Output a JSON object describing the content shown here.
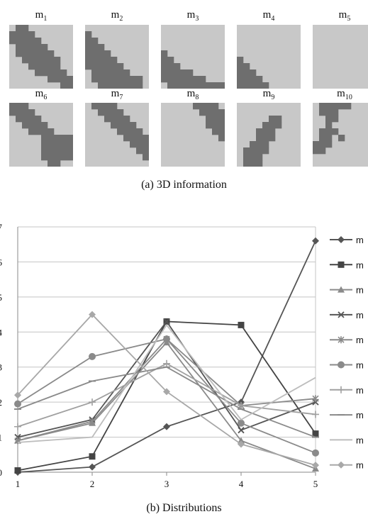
{
  "caption_a": "(a) 3D information",
  "caption_b": "(b) Distributions",
  "masks": [
    {
      "name": "m",
      "sub": "1"
    },
    {
      "name": "m",
      "sub": "2"
    },
    {
      "name": "m",
      "sub": "3"
    },
    {
      "name": "m",
      "sub": "4"
    },
    {
      "name": "m",
      "sub": "5"
    },
    {
      "name": "m",
      "sub": "6"
    },
    {
      "name": "m",
      "sub": "7"
    },
    {
      "name": "m",
      "sub": "8"
    },
    {
      "name": "m",
      "sub": "9"
    },
    {
      "name": "m",
      "sub": "10"
    }
  ],
  "colors": {
    "mask_bg": "#c8c8c8",
    "mask_fg": "#6e6e6e"
  },
  "chart_data": {
    "type": "line",
    "x": [
      1,
      2,
      3,
      4,
      5
    ],
    "y_ticks": [
      "0",
      "1",
      "2",
      "3",
      "4",
      "5",
      "6",
      "7"
    ],
    "x_ticks": [
      "1",
      "2",
      "3",
      "4",
      "5"
    ],
    "ylim": [
      0,
      0.7
    ],
    "grid": true,
    "legend_placement": "right",
    "series": [
      {
        "name": "m",
        "marker": "diamond",
        "color": "#555555",
        "values": [
          0.0,
          0.015,
          0.13,
          0.2,
          0.66
        ]
      },
      {
        "name": "m",
        "marker": "square",
        "color": "#444444",
        "values": [
          0.005,
          0.045,
          0.43,
          0.42,
          0.11
        ]
      },
      {
        "name": "m",
        "marker": "triangle",
        "color": "#8a8a8a",
        "values": [
          0.09,
          0.14,
          0.37,
          0.09,
          0.01
        ]
      },
      {
        "name": "m",
        "marker": "x",
        "color": "#555555",
        "values": [
          0.1,
          0.15,
          0.43,
          0.12,
          0.2
        ]
      },
      {
        "name": "m",
        "marker": "star",
        "color": "#8a8a8a",
        "values": [
          0.09,
          0.145,
          0.38,
          0.19,
          0.21
        ]
      },
      {
        "name": "m",
        "marker": "circle",
        "color": "#8a8a8a",
        "values": [
          0.195,
          0.33,
          0.38,
          0.14,
          0.055
        ]
      },
      {
        "name": "m",
        "marker": "plus",
        "color": "#a0a0a0",
        "values": [
          0.13,
          0.2,
          0.31,
          0.19,
          0.165
        ]
      },
      {
        "name": "m",
        "marker": "dash",
        "color": "#8a8a8a",
        "values": [
          0.18,
          0.26,
          0.3,
          0.18,
          0.1
        ]
      },
      {
        "name": "m",
        "marker": "none",
        "color": "#bdbdbd",
        "values": [
          0.085,
          0.1,
          0.42,
          0.15,
          0.27
        ]
      },
      {
        "name": "m",
        "marker": "diamond",
        "color": "#a8a8a8",
        "values": [
          0.22,
          0.45,
          0.23,
          0.08,
          0.02
        ]
      }
    ]
  }
}
